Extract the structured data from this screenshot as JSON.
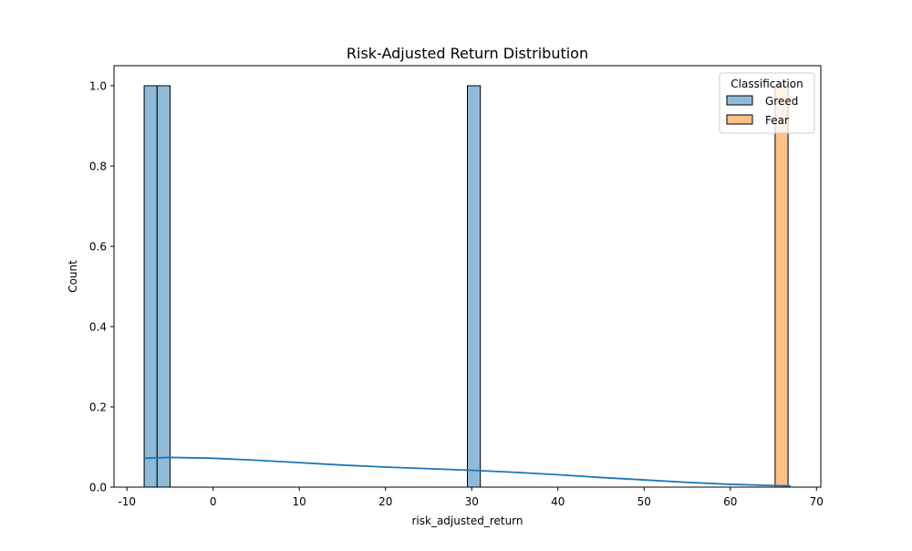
{
  "chart_data": {
    "type": "histogram",
    "title": "Risk-Adjusted Return Distribution",
    "xlabel": "risk_adjusted_return",
    "ylabel": "Count",
    "xlim": [
      -11.5,
      70.5
    ],
    "ylim": [
      0,
      1.05
    ],
    "xticks": [
      -10,
      0,
      10,
      20,
      30,
      40,
      50,
      60,
      70
    ],
    "yticks": [
      0.0,
      0.2,
      0.4,
      0.6,
      0.8,
      1.0
    ],
    "grid": false,
    "legend": {
      "title": "Classification",
      "placement": "top-right"
    },
    "series": [
      {
        "name": "Greed",
        "color": "#1f77b4",
        "fill": "#8fbbd9",
        "bins": [
          {
            "x0": -8.0,
            "x1": -6.5,
            "count": 1
          },
          {
            "x0": -6.5,
            "x1": -5.0,
            "count": 1
          },
          {
            "x0": 29.5,
            "x1": 31.0,
            "count": 1
          }
        ],
        "kde": {
          "x": [
            -8,
            -5,
            0,
            5,
            10,
            15,
            20,
            25,
            30,
            35,
            40,
            45,
            50,
            55,
            60,
            65,
            67
          ],
          "y": [
            0.072,
            0.074,
            0.072,
            0.067,
            0.061,
            0.055,
            0.05,
            0.046,
            0.042,
            0.037,
            0.031,
            0.024,
            0.018,
            0.012,
            0.007,
            0.004,
            0.003
          ]
        }
      },
      {
        "name": "Fear",
        "color": "#ff7f0e",
        "fill": "#ffbf86",
        "bins": [
          {
            "x0": 65.2,
            "x1": 66.7,
            "count": 1
          }
        ]
      }
    ]
  }
}
